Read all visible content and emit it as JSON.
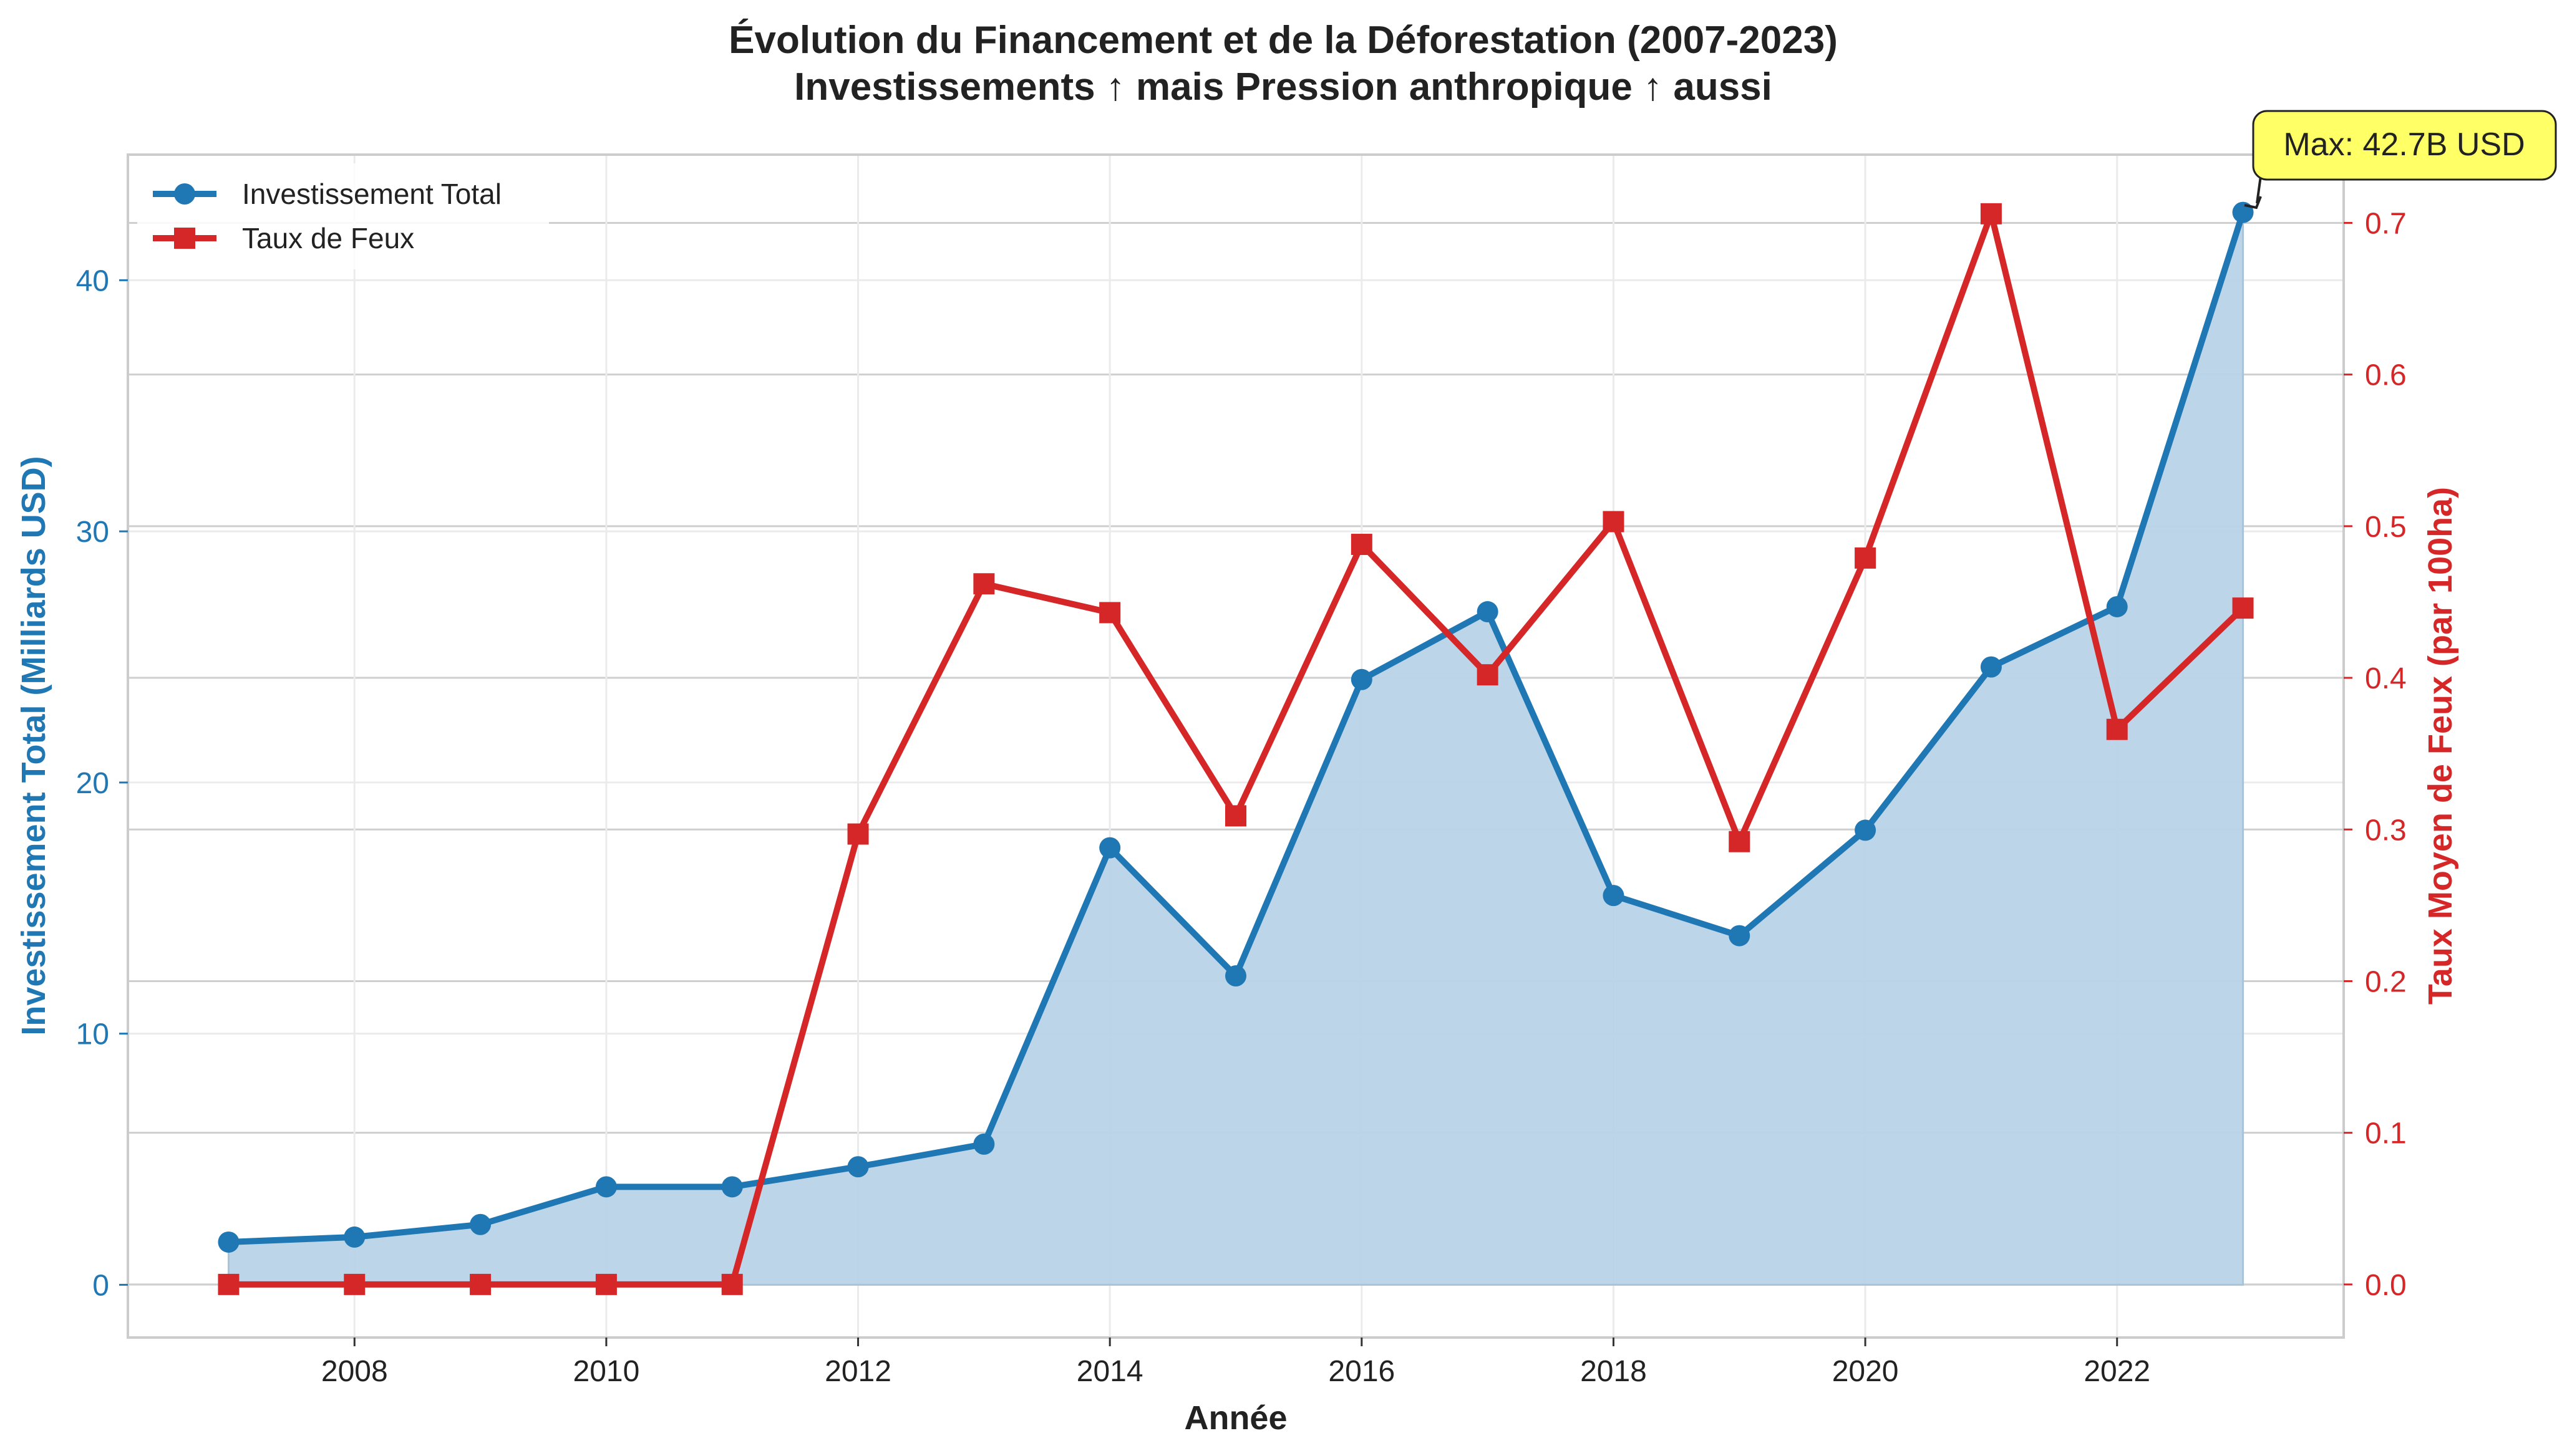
{
  "chart_data": {
    "type": "line",
    "title": "Évolution du Financement et de la Déforestation (2007-2023)",
    "subtitle": "Investissements ↑ mais Pression anthropique ↑ aussi",
    "xlabel": "Année",
    "ylabel_left": "Investissement Total (Milliards USD)",
    "ylabel_right": "Taux Moyen de Feux (par 100ha)",
    "x": [
      2007,
      2008,
      2009,
      2010,
      2011,
      2012,
      2013,
      2014,
      2015,
      2016,
      2017,
      2018,
      2019,
      2020,
      2021,
      2022,
      2023
    ],
    "xlim": [
      2006.2,
      2023.8
    ],
    "ylim_left": [
      -2.1,
      45.0
    ],
    "ylim_right": [
      -0.035,
      0.745
    ],
    "x_ticks": [
      "2008",
      "2010",
      "2012",
      "2014",
      "2016",
      "2018",
      "2020",
      "2022"
    ],
    "y_left_ticks": [
      "0",
      "10",
      "20",
      "30",
      "40"
    ],
    "y_right_ticks": [
      "0.0",
      "0.1",
      "0.2",
      "0.3",
      "0.4",
      "0.5",
      "0.6",
      "0.7"
    ],
    "grid": true,
    "legend_position": "top-left",
    "series": [
      {
        "name": "Investissement Total",
        "axis": "left",
        "color": "#1f77b4",
        "fill_color": "#b9d3e8",
        "marker": "circle",
        "values": [
          1.7,
          1.9,
          2.4,
          3.9,
          3.9,
          4.7,
          5.6,
          17.4,
          12.3,
          24.1,
          26.8,
          15.5,
          13.9,
          18.1,
          24.6,
          27.0,
          42.7
        ]
      },
      {
        "name": "Taux de Feux",
        "axis": "right",
        "color": "#d62728",
        "marker": "square",
        "values": [
          0.0,
          0.0,
          0.0,
          0.0,
          0.0,
          0.297,
          0.462,
          0.443,
          0.309,
          0.488,
          0.402,
          0.503,
          0.292,
          0.479,
          0.706,
          0.366,
          0.446
        ]
      }
    ],
    "annotations": [
      {
        "text": "Max: 42.7B USD",
        "x": 2023,
        "y": 42.7,
        "axis": "left",
        "box_color": "#ffff66"
      }
    ],
    "colors": {
      "left_axis": "#1f77b4",
      "right_axis": "#d62728",
      "grid": "#e6e6e6",
      "frame": "#cccccc"
    }
  }
}
